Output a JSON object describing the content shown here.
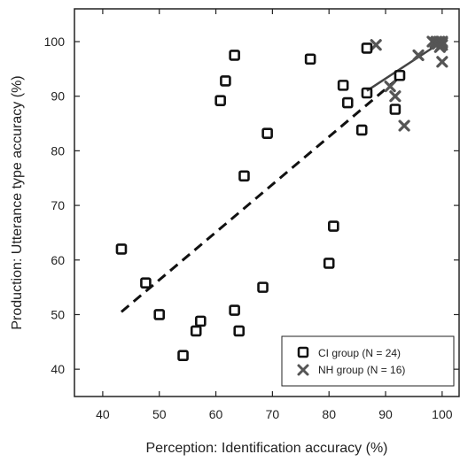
{
  "chart_data": {
    "type": "scatter",
    "title": "",
    "xlabel": "Perception: Identification accuracy (%)",
    "ylabel": "Production: Utterance type accuracy (%)",
    "xlim": [
      35,
      103
    ],
    "ylim": [
      35,
      106
    ],
    "xticks": [
      40,
      50,
      60,
      70,
      80,
      90,
      100
    ],
    "yticks": [
      40,
      50,
      60,
      70,
      80,
      90,
      100
    ],
    "grid": false,
    "legend_position": "bottom-right",
    "series": [
      {
        "name": "CI group (N = 24)",
        "marker": "open-square",
        "color": "#111111",
        "points": [
          [
            43.3,
            62
          ],
          [
            47.6,
            55.8
          ],
          [
            50,
            50
          ],
          [
            54.2,
            42.5
          ],
          [
            56.5,
            47
          ],
          [
            57.3,
            48.8
          ],
          [
            60.8,
            89.2
          ],
          [
            61.7,
            92.8
          ],
          [
            63.3,
            97.5
          ],
          [
            63.3,
            50.8
          ],
          [
            64.1,
            47
          ],
          [
            65,
            75.4
          ],
          [
            68.3,
            55
          ],
          [
            69.1,
            83.2
          ],
          [
            76.7,
            96.8
          ],
          [
            80,
            59.4
          ],
          [
            80.8,
            66.2
          ],
          [
            82.5,
            92
          ],
          [
            83.3,
            88.8
          ],
          [
            85.8,
            83.8
          ],
          [
            86.7,
            98.8
          ],
          [
            86.7,
            90.6
          ],
          [
            91.7,
            87.6
          ],
          [
            92.5,
            93.8
          ]
        ]
      },
      {
        "name": "NH group (N = 16)",
        "marker": "x",
        "color": "#555555",
        "points": [
          [
            88.3,
            99.4
          ],
          [
            90.8,
            91.8
          ],
          [
            91.7,
            90
          ],
          [
            93.3,
            84.6
          ],
          [
            95.8,
            97.5
          ],
          [
            98.3,
            100
          ],
          [
            99,
            100
          ],
          [
            99.2,
            99.6
          ],
          [
            99.5,
            100
          ],
          [
            99.8,
            99.3
          ],
          [
            100,
            100
          ],
          [
            100,
            99.4
          ],
          [
            100,
            96.3
          ],
          [
            98.8,
            99.8
          ],
          [
            99.6,
            99
          ],
          [
            100,
            99.8
          ]
        ]
      }
    ],
    "trend_lines": [
      {
        "series": "CI group (N = 24)",
        "style": "dashed",
        "color": "#111111",
        "x": [
          43.3,
          92.5
        ],
        "y": [
          50.5,
          93.5
        ]
      },
      {
        "series": "NH group (N = 16)",
        "style": "solid",
        "color": "#444444",
        "x": [
          86.7,
          100
        ],
        "y": [
          91,
          100
        ]
      }
    ]
  }
}
